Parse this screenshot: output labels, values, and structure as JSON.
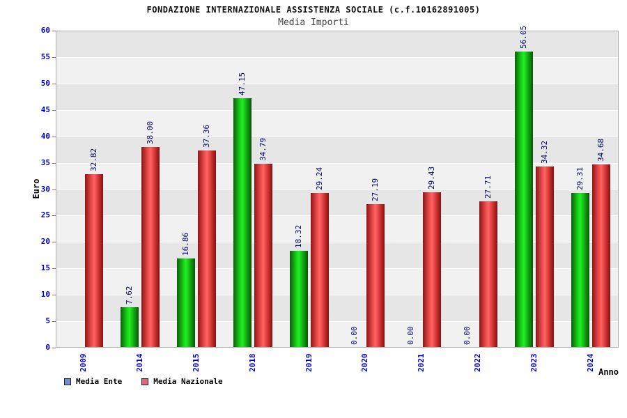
{
  "chart_data": {
    "type": "bar",
    "title": "FONDAZIONE INTERNAZIONALE ASSISTENZA SOCIALE (c.f.10162891005)",
    "subtitle": "Media Importi",
    "xlabel": "Anno",
    "ylabel": "Euro",
    "ylim": [
      0,
      60
    ],
    "ytick_step": 5,
    "grid": true,
    "legend_position": "bottom-left",
    "value_label_decimals": 2,
    "categories": [
      "2009",
      "2014",
      "2015",
      "2018",
      "2019",
      "2020",
      "2021",
      "2022",
      "2023",
      "2024"
    ],
    "series": [
      {
        "name": "Media Ente",
        "bar_color": "green",
        "legend_color": "#6E8FC7",
        "values": [
          null,
          7.62,
          16.86,
          47.15,
          18.32,
          0.0,
          0.0,
          0.0,
          56.05,
          29.31
        ]
      },
      {
        "name": "Media Nazionale",
        "bar_color": "red",
        "legend_color": "#DD6680",
        "values": [
          32.82,
          38.0,
          37.36,
          34.79,
          29.24,
          27.19,
          29.43,
          27.71,
          34.32,
          34.68
        ]
      }
    ],
    "colors": {
      "tick_label": "#0000CC",
      "value_label": "#000066",
      "band_dark": "#E6E6E6",
      "band_light": "#F1F1F1"
    }
  }
}
